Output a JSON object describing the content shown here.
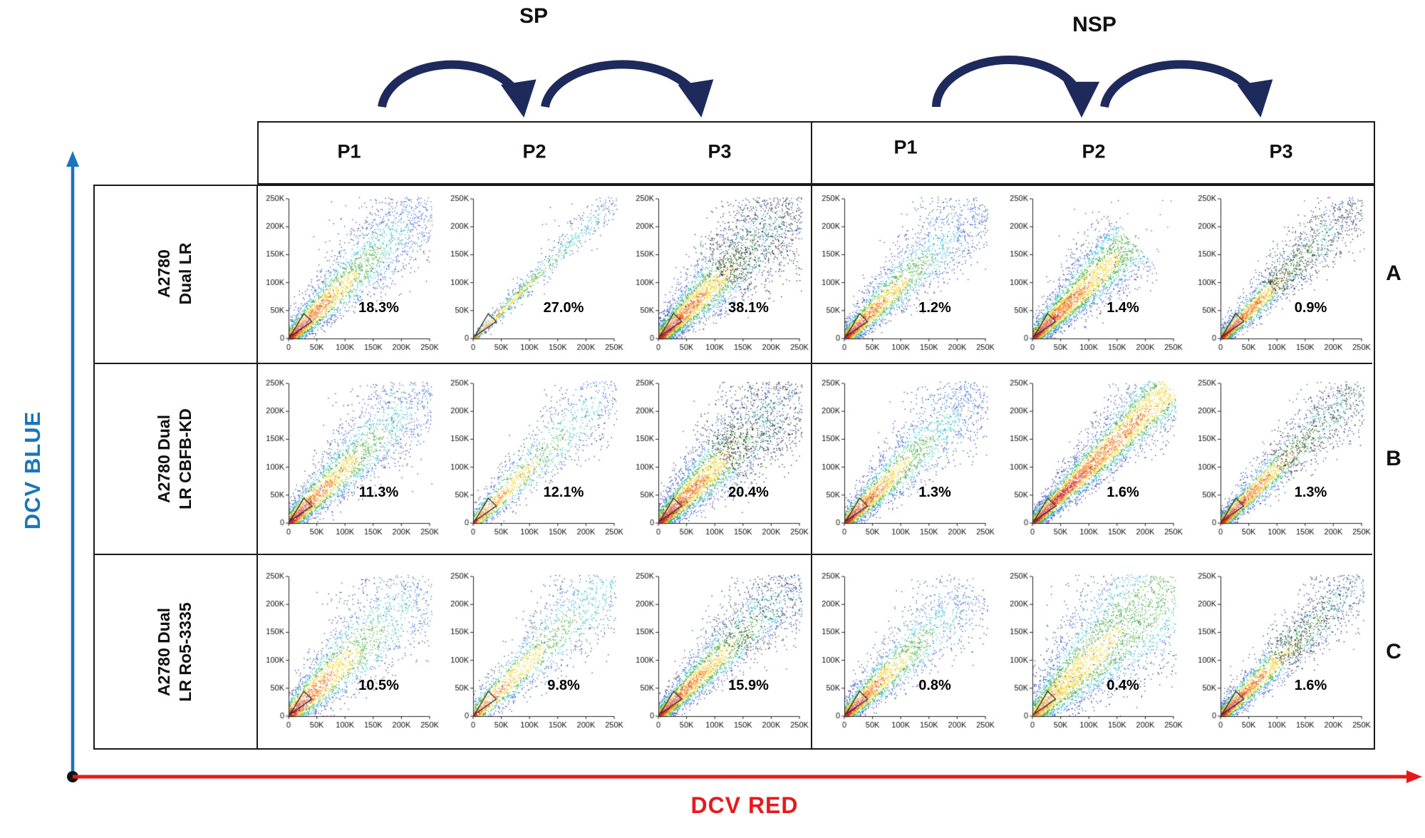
{
  "figure": {
    "title_groups": [
      {
        "label": "SP"
      },
      {
        "label": "NSP"
      }
    ],
    "column_headers": [
      "P1",
      "P2",
      "P3",
      "P1",
      "P2",
      "P3"
    ],
    "rows": [
      {
        "letter": "A",
        "label_line1": "A2780",
        "label_line2": "Dual LR"
      },
      {
        "letter": "B",
        "label_line1": "A2780 Dual",
        "label_line2": "LR CBFB-KD"
      },
      {
        "letter": "C",
        "label_line1": "A2780 Dual",
        "label_line2": "LR Ro5-3335"
      }
    ],
    "x_axis_label": "DCV RED",
    "y_axis_label": "DCV BLUE",
    "colors": {
      "x_axis": "#e8191c",
      "y_axis": "#1b75bb",
      "arrows": "#1e2a5c",
      "border": "#1a1a1a"
    }
  },
  "chart_data": {
    "type": "scatter",
    "description": "Flow cytometry density dot plots (DCV Blue vs DCV Red). Sequential gating P1->P2->P3 for side population (SP) and non-side population (NSP) in three A2780 Dual LR cell lines. Percentages are the gated population fractions shown in each panel.",
    "x_axis": {
      "label": "DCV RED",
      "range": [
        0,
        250000
      ],
      "tick_labels": [
        "0",
        "50K",
        "100K",
        "150K",
        "200K",
        "250K"
      ]
    },
    "y_axis": {
      "label": "DCV BLUE",
      "range": [
        0,
        250000
      ],
      "tick_labels": [
        "0",
        "50K",
        "100K",
        "150K",
        "200K",
        "250K"
      ]
    },
    "density_palette": [
      {
        "min": 0.87,
        "color": "#d92a1f"
      },
      {
        "min": 0.74,
        "color": "#f2801d"
      },
      {
        "min": 0.6,
        "color": "#efd32a"
      },
      {
        "min": 0.46,
        "color": "#43ad3c"
      },
      {
        "min": 0.32,
        "color": "#2fb9c9"
      },
      {
        "min": 0.17,
        "color": "#3b66cc"
      },
      {
        "min": 0.0,
        "color": "#2c3f9f"
      }
    ],
    "black_color": "#1d1d1d",
    "noise_color": "#3450a8",
    "gate_polygon": [
      [
        0.012,
        0.015
      ],
      [
        0.165,
        0.122
      ],
      [
        0.108,
        0.178
      ]
    ],
    "panels": [
      {
        "row": "A2780 Dual LR",
        "group": "SP",
        "gate": "P1",
        "percent": "18.3%",
        "render": {
          "seed": 11,
          "n": 3000,
          "p": 2.0,
          "len": 1.0,
          "spread": 0.032,
          "grow": 0.16,
          "ridge": 0.82,
          "hot": 1,
          "black": null
        }
      },
      {
        "row": "A2780 Dual LR",
        "group": "SP",
        "gate": "P2",
        "percent": "27.0%",
        "render": {
          "seed": 12,
          "n": 850,
          "p": 1.6,
          "len": 1.02,
          "spread": 0.011,
          "grow": 0.05,
          "ridge": 0.7,
          "hot": 0.85,
          "black": null
        }
      },
      {
        "row": "A2780 Dual LR",
        "group": "SP",
        "gate": "P3",
        "percent": "38.1%",
        "render": {
          "seed": 13,
          "n": 4000,
          "p": 1.8,
          "len": 1.03,
          "spread": 0.03,
          "grow": 0.19,
          "ridge": 0.78,
          "hot": 1,
          "black": [
            0.45,
            0.6
          ]
        }
      },
      {
        "row": "A2780 Dual LR",
        "group": "NSP",
        "gate": "P1",
        "percent": "1.2%",
        "render": {
          "seed": 14,
          "n": 2800,
          "p": 2.1,
          "len": 0.98,
          "spread": 0.03,
          "grow": 0.15,
          "ridge": 0.85,
          "hot": 1,
          "black": null
        }
      },
      {
        "row": "A2780 Dual LR",
        "group": "NSP",
        "gate": "P2",
        "percent": "1.4%",
        "render": {
          "seed": 15,
          "n": 3300,
          "p": 1.7,
          "len": 0.7,
          "spread": 0.028,
          "grow": 0.17,
          "ridge": 0.45,
          "hot": 1,
          "black": null
        }
      },
      {
        "row": "A2780 Dual LR",
        "group": "NSP",
        "gate": "P3",
        "percent": "0.9%",
        "render": {
          "seed": 16,
          "n": 2600,
          "p": 2.3,
          "len": 1.0,
          "spread": 0.024,
          "grow": 0.1,
          "ridge": 0.8,
          "hot": 1,
          "black": [
            0.35,
            0.55
          ]
        }
      },
      {
        "row": "A2780 Dual LR CBFB-KD",
        "group": "SP",
        "gate": "P1",
        "percent": "11.3%",
        "render": {
          "seed": 21,
          "n": 3000,
          "p": 2.0,
          "len": 1.0,
          "spread": 0.034,
          "grow": 0.16,
          "ridge": 0.8,
          "hot": 1,
          "black": null
        }
      },
      {
        "row": "A2780 Dual LR CBFB-KD",
        "group": "SP",
        "gate": "P2",
        "percent": "12.1%",
        "render": {
          "seed": 22,
          "n": 1500,
          "p": 1.7,
          "len": 1.0,
          "spread": 0.03,
          "grow": 0.13,
          "ridge": 0.72,
          "hot": 0.9,
          "black": null
        }
      },
      {
        "row": "A2780 Dual LR CBFB-KD",
        "group": "SP",
        "gate": "P3",
        "percent": "20.4%",
        "render": {
          "seed": 23,
          "n": 4000,
          "p": 1.8,
          "len": 1.03,
          "spread": 0.032,
          "grow": 0.19,
          "ridge": 0.78,
          "hot": 1,
          "black": [
            0.45,
            0.6
          ]
        }
      },
      {
        "row": "A2780 Dual LR CBFB-KD",
        "group": "NSP",
        "gate": "P1",
        "percent": "1.3%",
        "render": {
          "seed": 24,
          "n": 2800,
          "p": 2.1,
          "len": 1.0,
          "spread": 0.03,
          "grow": 0.15,
          "ridge": 0.85,
          "hot": 1,
          "black": null
        }
      },
      {
        "row": "A2780 Dual LR CBFB-KD",
        "group": "NSP",
        "gate": "P2",
        "percent": "1.6%",
        "render": {
          "seed": 25,
          "n": 3800,
          "p": 1.45,
          "len": 0.97,
          "spread": 0.024,
          "grow": 0.11,
          "ridge": 0.3,
          "hot": 1,
          "black": null
        }
      },
      {
        "row": "A2780 Dual LR CBFB-KD",
        "group": "NSP",
        "gate": "P3",
        "percent": "1.3%",
        "render": {
          "seed": 26,
          "n": 2700,
          "p": 2.2,
          "len": 1.0,
          "spread": 0.026,
          "grow": 0.1,
          "ridge": 0.72,
          "hot": 1,
          "black": [
            0.4,
            0.5
          ]
        }
      },
      {
        "row": "A2780 Dual LR Ro5-3335",
        "group": "SP",
        "gate": "P1",
        "percent": "10.5%",
        "render": {
          "seed": 31,
          "n": 2600,
          "p": 1.9,
          "len": 1.0,
          "spread": 0.04,
          "grow": 0.2,
          "ridge": 0.8,
          "hot": 1,
          "black": null
        }
      },
      {
        "row": "A2780 Dual LR Ro5-3335",
        "group": "SP",
        "gate": "P2",
        "percent": "9.8%",
        "render": {
          "seed": 32,
          "n": 1700,
          "p": 1.5,
          "len": 1.0,
          "spread": 0.035,
          "grow": 0.15,
          "ridge": 0.65,
          "hot": 0.9,
          "black": null
        }
      },
      {
        "row": "A2780 Dual LR Ro5-3335",
        "group": "SP",
        "gate": "P3",
        "percent": "15.9%",
        "render": {
          "seed": 33,
          "n": 3200,
          "p": 2.0,
          "len": 1.0,
          "spread": 0.028,
          "grow": 0.14,
          "ridge": 0.75,
          "hot": 1,
          "black": [
            0.5,
            0.35
          ]
        }
      },
      {
        "row": "A2780 Dual LR Ro5-3335",
        "group": "NSP",
        "gate": "P1",
        "percent": "0.8%",
        "render": {
          "seed": 34,
          "n": 2400,
          "p": 2.2,
          "len": 0.92,
          "spread": 0.03,
          "grow": 0.16,
          "ridge": 0.8,
          "hot": 1,
          "black": null
        }
      },
      {
        "row": "A2780 Dual LR Ro5-3335",
        "group": "NSP",
        "gate": "P2",
        "percent": "0.4%",
        "render": {
          "seed": 35,
          "n": 3600,
          "p": 1.35,
          "len": 1.0,
          "spread": 0.04,
          "grow": 0.28,
          "ridge": 0.4,
          "hot": 0.8,
          "black": null
        }
      },
      {
        "row": "A2780 Dual LR Ro5-3335",
        "group": "NSP",
        "gate": "P3",
        "percent": "1.6%",
        "render": {
          "seed": 36,
          "n": 2800,
          "p": 2.2,
          "len": 1.0,
          "spread": 0.028,
          "grow": 0.1,
          "ridge": 0.75,
          "hot": 1,
          "black": [
            0.4,
            0.5
          ]
        }
      }
    ]
  }
}
